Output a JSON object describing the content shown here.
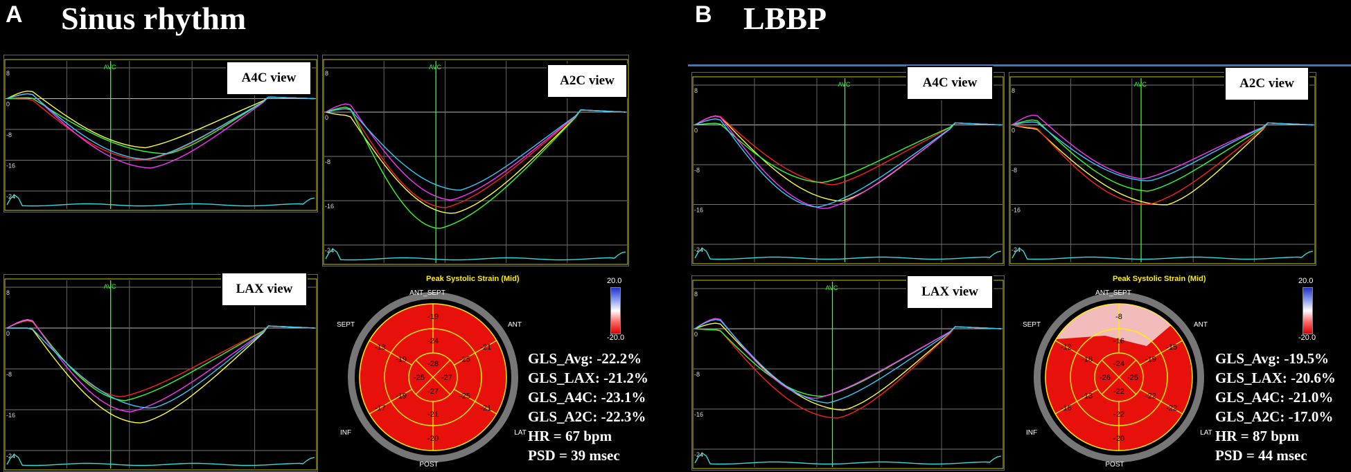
{
  "panels": {
    "a": {
      "letter": "A",
      "title": "Sinus rhythm",
      "views": {
        "a4c": "A4C view",
        "a2c": "A2C view",
        "lax": "LAX view"
      },
      "ticks": [
        "8",
        "0",
        "-8",
        "-16",
        "-24"
      ],
      "avc": "AVC",
      "bullseye": {
        "title": "Peak Systolic Strain (Mid)",
        "scale_max": "20.0",
        "scale_min": "-20.0",
        "walls": {
          "ant_sept": "ANT_SEPT",
          "ant": "ANT",
          "sept": "SEPT",
          "lat": "LAT",
          "inf": "INF",
          "post": "POST"
        },
        "segments": [
          "-19",
          "-21",
          "-21",
          "-20",
          "-17",
          "-13",
          "-24",
          "-25",
          "-25",
          "-21",
          "-19",
          "-19",
          "-28",
          "-27",
          "-27",
          "-25"
        ]
      },
      "stats": [
        "GLS_Avg: -22.2%",
        "GLS_LAX: -21.2%",
        "GLS_A4C: -23.1%",
        "GLS_A2C: -22.3%",
        "HR = 67 bpm",
        "PSD = 39 msec"
      ]
    },
    "b": {
      "letter": "B",
      "title": "LBBP",
      "views": {
        "a4c": "A4C view",
        "a2c": "A2C view",
        "lax": "LAX view"
      },
      "ticks": [
        "8",
        "0",
        "-8",
        "-16",
        "-24"
      ],
      "avc": "AVC",
      "bullseye": {
        "title": "Peak Systolic Strain (Mid)",
        "scale_max": "20.0",
        "scale_min": "-20.0",
        "walls": {
          "ant_sept": "ANT_SEPT",
          "ant": "ANT",
          "sept": "SEPT",
          "lat": "LAT",
          "inf": "INF",
          "post": "POST"
        },
        "segments": [
          "-8",
          "-15",
          "-22",
          "-20",
          "-16",
          "-12",
          "-16",
          "-19",
          "-22",
          "-22",
          "-13",
          "-18",
          "-24",
          "-25",
          "-22",
          "-26"
        ]
      },
      "stats": [
        "GLS_Avg: -19.5%",
        "GLS_LAX: -20.6%",
        "GLS_A4C: -21.0%",
        "GLS_A2C: -17.0%",
        "HR = 87 bpm",
        "PSD = 44 msec"
      ]
    }
  },
  "colors": {
    "curve_colors": [
      "#ffff33",
      "#ff2020",
      "#33ff33",
      "#ff33ff",
      "#33ccff",
      "#33dddd"
    ],
    "bullseye_red": "#e8100a",
    "avc_line": "#33ff33",
    "frame_yellow": "#c8c800"
  }
}
